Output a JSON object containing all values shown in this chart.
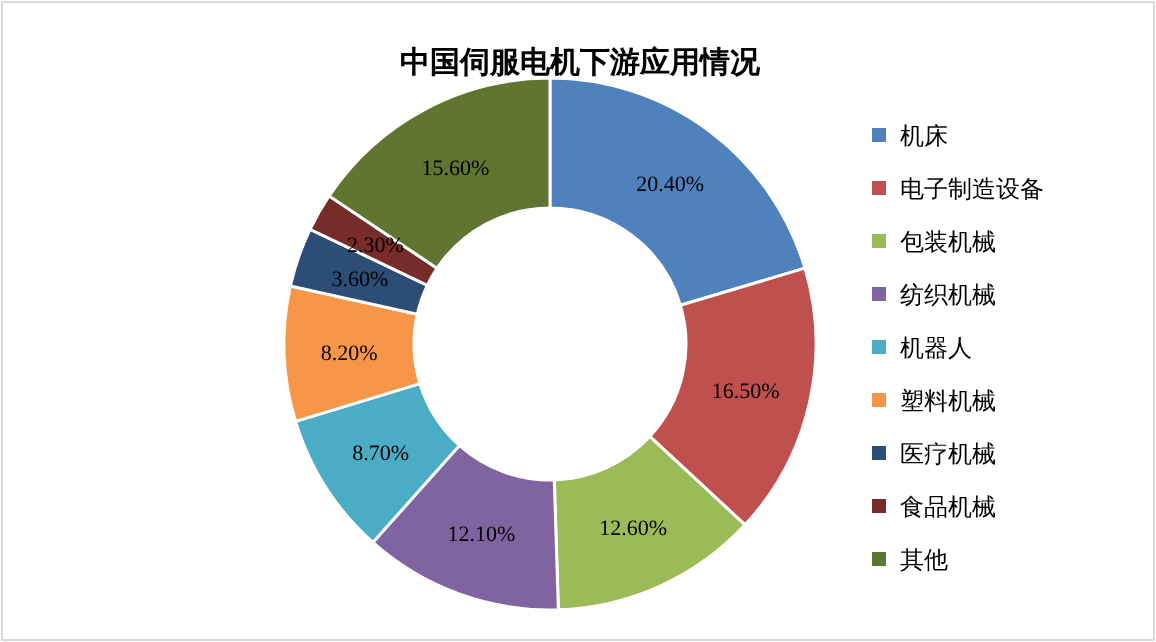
{
  "chart_data": {
    "type": "donut",
    "title": "中国伺服电机下游应用情况",
    "categories": [
      "机床",
      "电子制造设备",
      "包装机械",
      "纺织机械",
      "机器人",
      "塑料机械",
      "医疗机械",
      "食品机械",
      "其他"
    ],
    "values": [
      20.4,
      16.5,
      12.6,
      12.1,
      8.7,
      8.2,
      3.6,
      2.3,
      15.6
    ],
    "value_labels": [
      "20.40%",
      "16.50%",
      "12.60%",
      "12.10%",
      "8.70%",
      "8.20%",
      "3.60%",
      "2.30%",
      "15.60%"
    ],
    "colors": [
      "#4f81bd",
      "#c0504d",
      "#9bbb59",
      "#8064a2",
      "#4bacc6",
      "#f79646",
      "#2c4d75",
      "#772c2a",
      "#5f7530"
    ],
    "legend": "right"
  }
}
